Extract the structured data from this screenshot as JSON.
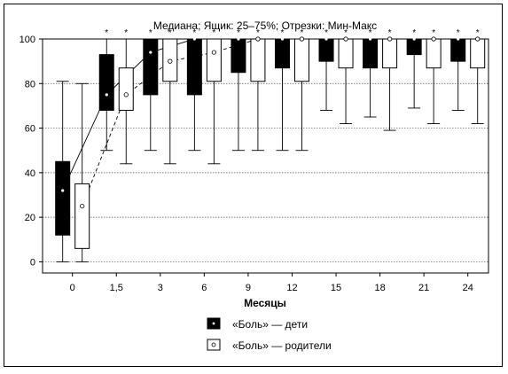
{
  "chart_data": {
    "type": "box",
    "title": "Медиана; Ящик: 25–75%; Отрезки: Мин-Макс",
    "xlabel": "Месяцы",
    "ylabel": "",
    "ylim": [
      -5,
      100
    ],
    "yticks": [
      0,
      20,
      40,
      60,
      80,
      100
    ],
    "grid": "horizontal dotted",
    "categories": [
      "0",
      "1,5",
      "3",
      "6",
      "9",
      "12",
      "15",
      "18",
      "21",
      "24"
    ],
    "significance_marker": "*",
    "significant": [
      false,
      true,
      true,
      true,
      true,
      true,
      true,
      true,
      true,
      true
    ],
    "legend_position": "bottom-center",
    "series": [
      {
        "name": "«Боль» — дети",
        "fill": "#000000",
        "median_marker": "dot",
        "boxes": [
          {
            "min": 0,
            "q1": 12,
            "median": 32,
            "q3": 45,
            "max": 81
          },
          {
            "min": 50,
            "q1": 68,
            "median": 75,
            "q3": 93,
            "max": 100
          },
          {
            "min": 50,
            "q1": 75,
            "median": 94,
            "q3": 100,
            "max": 100
          },
          {
            "min": 50,
            "q1": 75,
            "median": 100,
            "q3": 100,
            "max": 100
          },
          {
            "min": 50,
            "q1": 85,
            "median": 100,
            "q3": 100,
            "max": 100
          },
          {
            "min": 50,
            "q1": 87,
            "median": 100,
            "q3": 100,
            "max": 100
          },
          {
            "min": 68,
            "q1": 90,
            "median": 100,
            "q3": 100,
            "max": 100
          },
          {
            "min": 65,
            "q1": 87,
            "median": 100,
            "q3": 100,
            "max": 100
          },
          {
            "min": 69,
            "q1": 93,
            "median": 100,
            "q3": 100,
            "max": 100
          },
          {
            "min": 68,
            "q1": 90,
            "median": 100,
            "q3": 100,
            "max": 100
          }
        ]
      },
      {
        "name": "«Боль» — родители",
        "fill": "#ffffff",
        "median_marker": "circle",
        "boxes": [
          {
            "min": 0,
            "q1": 6,
            "median": 25,
            "q3": 35,
            "max": 80
          },
          {
            "min": 44,
            "q1": 68,
            "median": 75,
            "q3": 87,
            "max": 100
          },
          {
            "min": 44,
            "q1": 81,
            "median": 90,
            "q3": 100,
            "max": 100
          },
          {
            "min": 44,
            "q1": 81,
            "median": 94,
            "q3": 100,
            "max": 100
          },
          {
            "min": 50,
            "q1": 81,
            "median": 100,
            "q3": 100,
            "max": 100
          },
          {
            "min": 50,
            "q1": 81,
            "median": 100,
            "q3": 100,
            "max": 100
          },
          {
            "min": 62,
            "q1": 87,
            "median": 100,
            "q3": 100,
            "max": 100
          },
          {
            "min": 59,
            "q1": 87,
            "median": 100,
            "q3": 100,
            "max": 100
          },
          {
            "min": 62,
            "q1": 87,
            "median": 100,
            "q3": 100,
            "max": 100
          },
          {
            "min": 62,
            "q1": 87,
            "median": 100,
            "q3": 100,
            "max": 100
          }
        ]
      }
    ]
  }
}
